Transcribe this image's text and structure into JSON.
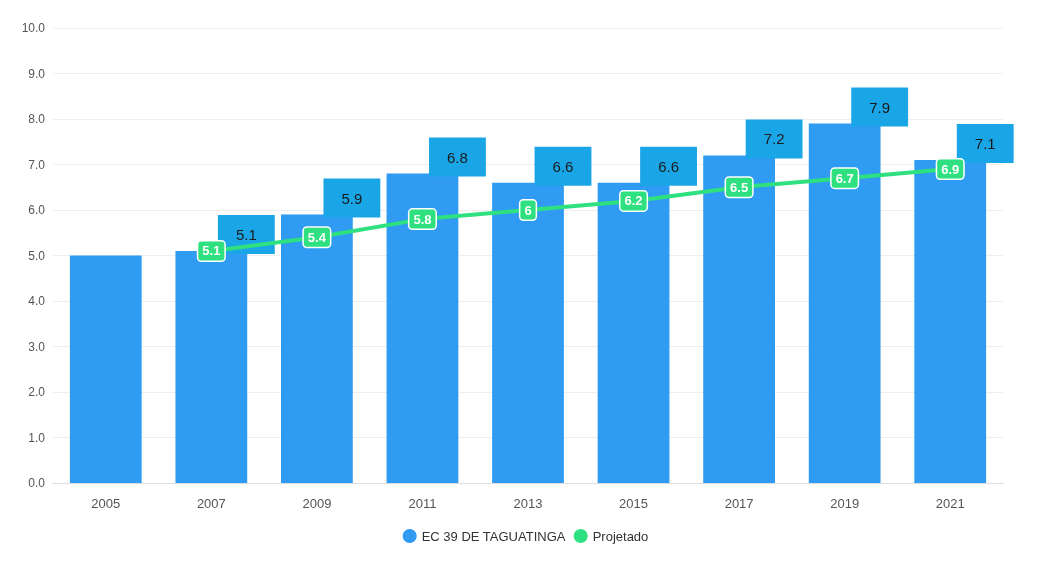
{
  "chart_data": {
    "type": "bar",
    "categories": [
      "2005",
      "2007",
      "2009",
      "2011",
      "2013",
      "2015",
      "2017",
      "2019",
      "2021"
    ],
    "series": [
      {
        "name": "EC 39 DE TAGUATINGA",
        "color": "#2f9bf2",
        "values": [
          5.0,
          5.1,
          5.9,
          6.8,
          6.6,
          6.6,
          7.2,
          7.9,
          7.1
        ],
        "value_labels": [
          null,
          "5.1",
          "5.9",
          "6.8",
          "6.6",
          "6.6",
          "7.2",
          "7.9",
          "7.1"
        ]
      },
      {
        "name": "Projetado",
        "type": "line",
        "marker": "square",
        "color": "#2ee07f",
        "values": [
          null,
          5.1,
          5.4,
          5.8,
          6,
          6.2,
          6.5,
          6.7,
          6.9
        ],
        "value_labels": [
          null,
          "5.1",
          "5.4",
          "5.8",
          "6",
          "6.2",
          "6.5",
          "6.7",
          "6.9"
        ]
      }
    ],
    "ylim": [
      0,
      10
    ],
    "yticks": [
      {
        "value": 0,
        "label": "0.0"
      },
      {
        "value": 1,
        "label": "1.0"
      },
      {
        "value": 2,
        "label": "2.0"
      },
      {
        "value": 3,
        "label": "3.0"
      },
      {
        "value": 4,
        "label": "4.0"
      },
      {
        "value": 5,
        "label": "5.0"
      },
      {
        "value": 6,
        "label": "6.0"
      },
      {
        "value": 7,
        "label": "7.0"
      },
      {
        "value": 8,
        "label": "8.0"
      },
      {
        "value": 9,
        "label": "9.0"
      },
      {
        "value": 10,
        "label": "10.0"
      }
    ],
    "grid": "y",
    "legend": "bottom"
  }
}
